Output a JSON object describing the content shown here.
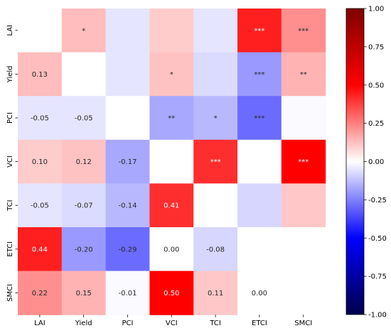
{
  "chart_data": {
    "type": "heatmap",
    "variables": [
      "LAI",
      "Yield",
      "PCI",
      "VCI",
      "TCI",
      "ETCI",
      "SMCI"
    ],
    "lower_triangle_values": [
      [
        null,
        null,
        null,
        null,
        null,
        null,
        null
      ],
      [
        "0.13",
        null,
        null,
        null,
        null,
        null,
        null
      ],
      [
        "-0.05",
        "-0.05",
        null,
        null,
        null,
        null,
        null
      ],
      [
        "0.10",
        "0.12",
        "-0.17",
        null,
        null,
        null,
        null
      ],
      [
        "-0.05",
        "-0.07",
        "-0.14",
        "0.41",
        null,
        null,
        null
      ],
      [
        "0.44",
        "-0.20",
        "-0.29",
        "0.00",
        "-0.08",
        null,
        null
      ],
      [
        "0.22",
        "0.15",
        "-0.01",
        "0.50",
        "0.11",
        "0.00",
        null
      ]
    ],
    "upper_triangle_shading": [
      [
        null,
        0.13,
        -0.05,
        0.1,
        -0.05,
        0.44,
        0.22
      ],
      [
        null,
        null,
        -0.05,
        0.12,
        -0.07,
        -0.2,
        0.15
      ],
      [
        null,
        null,
        null,
        -0.17,
        -0.14,
        -0.29,
        -0.01
      ],
      [
        null,
        null,
        null,
        null,
        0.41,
        0.0,
        0.5
      ],
      [
        null,
        null,
        null,
        null,
        null,
        -0.08,
        0.11
      ],
      [
        null,
        null,
        null,
        null,
        null,
        null,
        0.0
      ],
      [
        null,
        null,
        null,
        null,
        null,
        null,
        null
      ]
    ],
    "significance_marks": [
      [
        "",
        "*",
        "",
        "",
        "",
        "***",
        "***"
      ],
      [
        "",
        "",
        "",
        "*",
        "",
        "***",
        "**"
      ],
      [
        "",
        "",
        "",
        "**",
        "*",
        "***",
        ""
      ],
      [
        "",
        "",
        "",
        "",
        "***",
        "",
        "***"
      ],
      [
        "",
        "",
        "",
        "",
        "",
        "",
        ""
      ],
      [
        "",
        "",
        "",
        "",
        "",
        "",
        ""
      ],
      [
        "",
        "",
        "",
        "",
        "",
        "",
        ""
      ]
    ],
    "colorbar": {
      "min": -1.0,
      "max": 1.0,
      "ticks": [
        "-1.00",
        "-0.75",
        "-0.50",
        "-0.25",
        "0.00",
        "0.25",
        "0.50",
        "0.75",
        "1.00"
      ],
      "colormap": "seismic"
    },
    "colors": {
      "low": "#00004c",
      "mid_low": "#0000ff",
      "center": "#ffffff",
      "mid_high": "#ff0000",
      "high": "#800000"
    }
  }
}
